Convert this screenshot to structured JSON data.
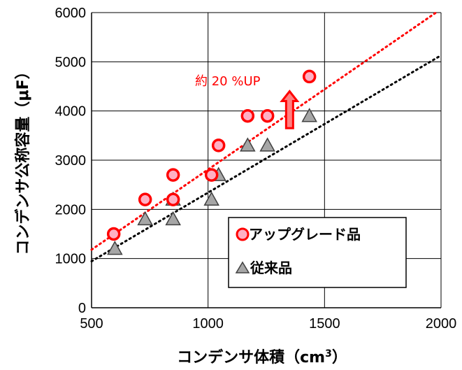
{
  "chart_data": {
    "type": "scatter",
    "xlabel_main": "コンデンサ体積",
    "xlabel_unit_pre": "（cm",
    "xlabel_unit_sup": "3",
    "xlabel_unit_post": "）",
    "ylabel": "コンデンサ公称容量（μF）",
    "xlim": [
      500,
      2000
    ],
    "ylim": [
      0,
      6000
    ],
    "x_ticks": [
      500,
      1000,
      1500,
      2000
    ],
    "y_ticks": [
      0,
      1000,
      2000,
      3000,
      4000,
      5000,
      6000
    ],
    "grid": true,
    "legend_position": "bottom-right",
    "series": [
      {
        "name": "アップグレード品",
        "marker": "circle",
        "color": "#ff0000",
        "fill": "#ffb0c4",
        "x": [
          595,
          730,
          850,
          850,
          1015,
          1045,
          1170,
          1255,
          1435
        ],
        "y": [
          1500,
          2200,
          2200,
          2700,
          2700,
          3300,
          3900,
          3900,
          4700
        ],
        "trend": {
          "slope": 3.26,
          "intercept": -450
        }
      },
      {
        "name": "従来品",
        "marker": "triangle",
        "color": "#404040",
        "fill": "#a6a6a6",
        "x": [
          600,
          730,
          850,
          850,
          1015,
          1045,
          1170,
          1255,
          1435
        ],
        "y": [
          1200,
          1800,
          1800,
          2200,
          2200,
          2700,
          3300,
          3300,
          3900
        ],
        "trend": {
          "slope": 2.79,
          "intercept": -450
        }
      }
    ],
    "annotation": {
      "text": "約 20 %UP",
      "arrow_x": 1350,
      "arrow_from": 3650,
      "arrow_to": 4400,
      "color": "#ff0000"
    }
  }
}
